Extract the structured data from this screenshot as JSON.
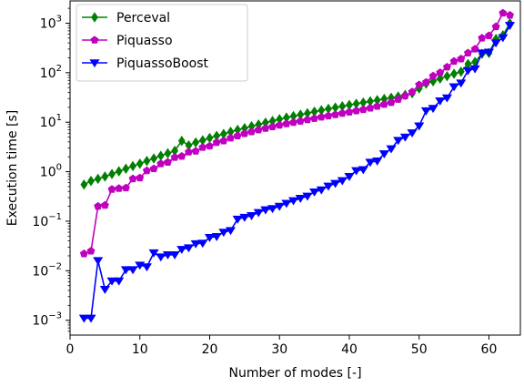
{
  "chart_data": {
    "type": "line",
    "xlabel": "Number of modes [-]",
    "ylabel": "Execution time [s]",
    "xlim": [
      0,
      64.5
    ],
    "ylim_log10": [
      -3.3,
      3.45
    ],
    "y_scale": "log",
    "grid": false,
    "legend_placement": "top-left",
    "x_ticks": [
      {
        "value": 0,
        "label": "0"
      },
      {
        "value": 10,
        "label": "10"
      },
      {
        "value": 20,
        "label": "20"
      },
      {
        "value": 30,
        "label": "30"
      },
      {
        "value": 40,
        "label": "40"
      },
      {
        "value": 50,
        "label": "50"
      },
      {
        "value": 60,
        "label": "60"
      }
    ],
    "y_ticks": [
      {
        "exp": -3,
        "base": "10",
        "sup": "−3"
      },
      {
        "exp": -2,
        "base": "10",
        "sup": "−2"
      },
      {
        "exp": -1,
        "base": "10",
        "sup": "−1"
      },
      {
        "exp": 0,
        "base": "10",
        "sup": "0"
      },
      {
        "exp": 1,
        "base": "10",
        "sup": "1"
      },
      {
        "exp": 2,
        "base": "10",
        "sup": "2"
      },
      {
        "exp": 3,
        "base": "10",
        "sup": "3"
      }
    ],
    "x": [
      2,
      3,
      4,
      5,
      6,
      7,
      8,
      9,
      10,
      11,
      12,
      13,
      14,
      15,
      16,
      17,
      18,
      19,
      20,
      21,
      22,
      23,
      24,
      25,
      26,
      27,
      28,
      29,
      30,
      31,
      32,
      33,
      34,
      35,
      36,
      37,
      38,
      39,
      40,
      41,
      42,
      43,
      44,
      45,
      46,
      47,
      48,
      49,
      50,
      51,
      52,
      53,
      54,
      55,
      56,
      57,
      58,
      59,
      60,
      61,
      62,
      63
    ],
    "series": [
      {
        "name": "Perceval",
        "color": "#008000",
        "marker": "diamond",
        "values": [
          0.55,
          0.65,
          0.72,
          0.8,
          0.9,
          1.02,
          1.15,
          1.3,
          1.45,
          1.65,
          1.85,
          2.1,
          2.35,
          2.65,
          4.2,
          3.4,
          3.9,
          4.3,
          4.8,
          5.3,
          5.8,
          6.4,
          7.0,
          7.6,
          8.3,
          9.0,
          9.8,
          10.6,
          11.5,
          12.4,
          13.3,
          14.2,
          15.2,
          16.3,
          17.4,
          18.6,
          19.8,
          21.0,
          22.3,
          23.6,
          25.0,
          26.4,
          27.9,
          29.5,
          31.2,
          33.0,
          35.5,
          38.5,
          48.0,
          60.0,
          67.0,
          76.0,
          85.0,
          95.0,
          105.0,
          150.0,
          165.0,
          240.0,
          250.0,
          480.0,
          570.0,
          1000.0
        ]
      },
      {
        "name": "Piquasso",
        "color": "#bf00bf",
        "marker": "pentagon",
        "values": [
          0.022,
          0.025,
          0.2,
          0.21,
          0.44,
          0.46,
          0.47,
          0.72,
          0.75,
          1.05,
          1.15,
          1.45,
          1.55,
          1.95,
          2.05,
          2.5,
          2.6,
          3.1,
          3.3,
          3.9,
          4.2,
          4.8,
          5.3,
          5.9,
          6.4,
          7.0,
          7.5,
          8.1,
          8.7,
          9.3,
          9.9,
          10.5,
          11.2,
          11.9,
          12.7,
          13.4,
          14.2,
          15.1,
          16.0,
          17.0,
          18.0,
          19.3,
          21.0,
          23.0,
          25.0,
          29.0,
          34.0,
          41.0,
          57.0,
          64.0,
          86.0,
          100.0,
          130.0,
          170.0,
          190.0,
          250.0,
          300.0,
          500.0,
          560.0,
          850.0,
          1600.0,
          1450.0
        ]
      },
      {
        "name": "PiquassoBoost",
        "color": "#0000ff",
        "marker": "triangle-down",
        "values": [
          0.0011,
          0.0011,
          0.016,
          0.0042,
          0.0062,
          0.0062,
          0.0105,
          0.0105,
          0.013,
          0.012,
          0.023,
          0.019,
          0.021,
          0.021,
          0.027,
          0.029,
          0.035,
          0.036,
          0.047,
          0.049,
          0.06,
          0.065,
          0.11,
          0.12,
          0.13,
          0.15,
          0.17,
          0.18,
          0.2,
          0.23,
          0.26,
          0.29,
          0.32,
          0.39,
          0.43,
          0.51,
          0.58,
          0.66,
          0.8,
          1.05,
          1.1,
          1.55,
          1.65,
          2.3,
          2.9,
          4.3,
          5.0,
          6.1,
          8.4,
          17.0,
          19.0,
          27.0,
          31.0,
          52.0,
          62.0,
          110.0,
          120.0,
          250.0,
          260.0,
          400.0,
          510.0,
          900.0
        ]
      }
    ]
  }
}
